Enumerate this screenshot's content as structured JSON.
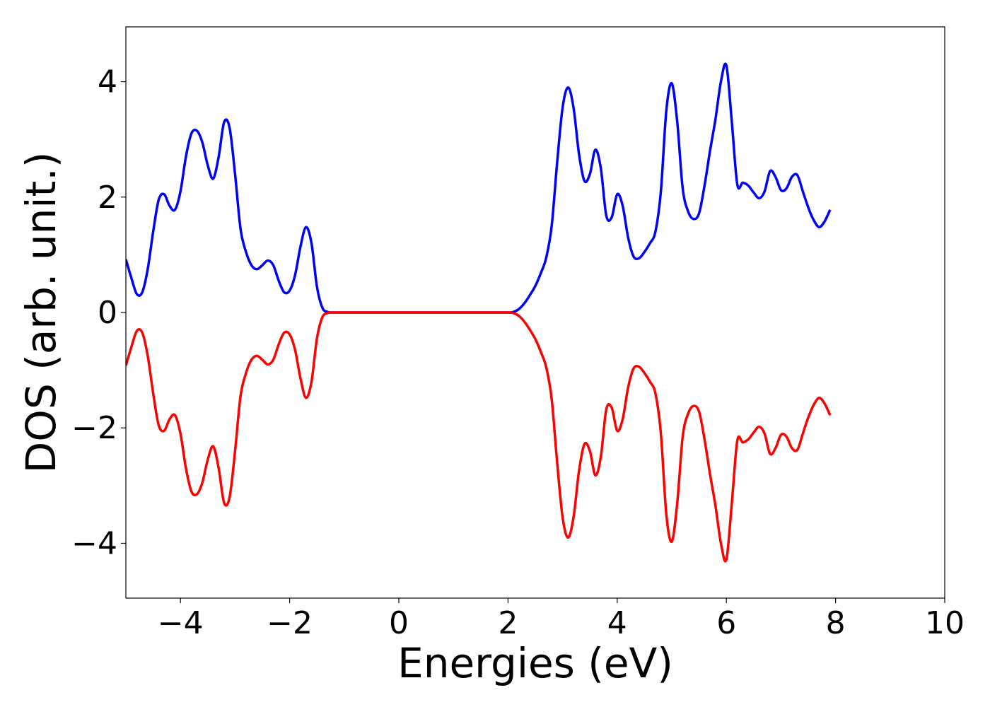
{
  "chart_data": {
    "type": "line",
    "title": "",
    "xlabel": "Energies (eV)",
    "ylabel": "DOS (arb. unit.)",
    "xlim": [
      -5,
      10
    ],
    "ylim": [
      -4.95,
      4.95
    ],
    "grid": false,
    "legend": "none",
    "x_ticks": [
      {
        "value": -4,
        "label": "−4"
      },
      {
        "value": -2,
        "label": "−2"
      },
      {
        "value": 0,
        "label": "0"
      },
      {
        "value": 2,
        "label": "2"
      },
      {
        "value": 4,
        "label": "4"
      },
      {
        "value": 6,
        "label": "6"
      },
      {
        "value": 8,
        "label": "8"
      },
      {
        "value": 10,
        "label": "10"
      }
    ],
    "y_ticks": [
      {
        "value": -4,
        "label": "−4"
      },
      {
        "value": -2,
        "label": "−2"
      },
      {
        "value": 0,
        "label": "0"
      },
      {
        "value": 2,
        "label": "2"
      },
      {
        "value": 4,
        "label": "4"
      }
    ],
    "series": [
      {
        "color": "#0000ff",
        "points": [
          [
            -5.0,
            0.92
          ],
          [
            -4.9,
            0.6
          ],
          [
            -4.8,
            0.32
          ],
          [
            -4.7,
            0.35
          ],
          [
            -4.6,
            0.75
          ],
          [
            -4.5,
            1.4
          ],
          [
            -4.4,
            1.95
          ],
          [
            -4.3,
            2.05
          ],
          [
            -4.2,
            1.85
          ],
          [
            -4.1,
            1.78
          ],
          [
            -4.0,
            2.1
          ],
          [
            -3.9,
            2.7
          ],
          [
            -3.8,
            3.1
          ],
          [
            -3.7,
            3.15
          ],
          [
            -3.6,
            2.95
          ],
          [
            -3.5,
            2.55
          ],
          [
            -3.4,
            2.32
          ],
          [
            -3.3,
            2.7
          ],
          [
            -3.2,
            3.3
          ],
          [
            -3.1,
            3.2
          ],
          [
            -3.0,
            2.4
          ],
          [
            -2.9,
            1.45
          ],
          [
            -2.8,
            1.05
          ],
          [
            -2.7,
            0.82
          ],
          [
            -2.6,
            0.75
          ],
          [
            -2.5,
            0.82
          ],
          [
            -2.4,
            0.9
          ],
          [
            -2.3,
            0.82
          ],
          [
            -2.2,
            0.55
          ],
          [
            -2.1,
            0.35
          ],
          [
            -2.0,
            0.38
          ],
          [
            -1.9,
            0.65
          ],
          [
            -1.8,
            1.15
          ],
          [
            -1.7,
            1.48
          ],
          [
            -1.6,
            1.2
          ],
          [
            -1.5,
            0.45
          ],
          [
            -1.4,
            0.08
          ],
          [
            -1.3,
            0.01
          ],
          [
            -1.2,
            0.0
          ],
          [
            -0.5,
            0.0
          ],
          [
            0.0,
            0.0
          ],
          [
            0.5,
            0.0
          ],
          [
            1.0,
            0.0
          ],
          [
            1.5,
            0.0
          ],
          [
            2.0,
            0.0
          ],
          [
            2.1,
            0.01
          ],
          [
            2.2,
            0.06
          ],
          [
            2.3,
            0.16
          ],
          [
            2.4,
            0.3
          ],
          [
            2.5,
            0.46
          ],
          [
            2.6,
            0.68
          ],
          [
            2.7,
            0.95
          ],
          [
            2.8,
            1.5
          ],
          [
            2.9,
            2.6
          ],
          [
            3.0,
            3.55
          ],
          [
            3.1,
            3.9
          ],
          [
            3.2,
            3.55
          ],
          [
            3.3,
            2.75
          ],
          [
            3.4,
            2.28
          ],
          [
            3.5,
            2.4
          ],
          [
            3.6,
            2.82
          ],
          [
            3.7,
            2.5
          ],
          [
            3.8,
            1.68
          ],
          [
            3.9,
            1.65
          ],
          [
            4.0,
            2.05
          ],
          [
            4.1,
            1.85
          ],
          [
            4.2,
            1.3
          ],
          [
            4.3,
            0.97
          ],
          [
            4.4,
            0.94
          ],
          [
            4.5,
            1.05
          ],
          [
            4.6,
            1.2
          ],
          [
            4.7,
            1.4
          ],
          [
            4.8,
            2.1
          ],
          [
            4.9,
            3.5
          ],
          [
            5.0,
            3.97
          ],
          [
            5.1,
            3.3
          ],
          [
            5.2,
            2.15
          ],
          [
            5.3,
            1.75
          ],
          [
            5.4,
            1.62
          ],
          [
            5.5,
            1.72
          ],
          [
            5.6,
            2.2
          ],
          [
            5.7,
            2.8
          ],
          [
            5.8,
            3.35
          ],
          [
            5.9,
            4.0
          ],
          [
            6.0,
            4.28
          ],
          [
            6.1,
            3.3
          ],
          [
            6.2,
            2.22
          ],
          [
            6.3,
            2.25
          ],
          [
            6.4,
            2.2
          ],
          [
            6.5,
            2.08
          ],
          [
            6.6,
            1.98
          ],
          [
            6.7,
            2.1
          ],
          [
            6.8,
            2.45
          ],
          [
            6.9,
            2.35
          ],
          [
            7.0,
            2.12
          ],
          [
            7.1,
            2.15
          ],
          [
            7.2,
            2.35
          ],
          [
            7.3,
            2.38
          ],
          [
            7.4,
            2.1
          ],
          [
            7.5,
            1.82
          ],
          [
            7.6,
            1.6
          ],
          [
            7.7,
            1.48
          ],
          [
            7.8,
            1.58
          ],
          [
            7.9,
            1.78
          ]
        ]
      },
      {
        "color": "#ff0000",
        "points": [
          [
            -5.0,
            -0.92
          ],
          [
            -4.9,
            -0.6
          ],
          [
            -4.8,
            -0.32
          ],
          [
            -4.7,
            -0.35
          ],
          [
            -4.6,
            -0.75
          ],
          [
            -4.5,
            -1.4
          ],
          [
            -4.4,
            -1.95
          ],
          [
            -4.3,
            -2.05
          ],
          [
            -4.2,
            -1.85
          ],
          [
            -4.1,
            -1.78
          ],
          [
            -4.0,
            -2.1
          ],
          [
            -3.9,
            -2.7
          ],
          [
            -3.8,
            -3.1
          ],
          [
            -3.7,
            -3.15
          ],
          [
            -3.6,
            -2.95
          ],
          [
            -3.5,
            -2.55
          ],
          [
            -3.4,
            -2.32
          ],
          [
            -3.3,
            -2.7
          ],
          [
            -3.2,
            -3.3
          ],
          [
            -3.1,
            -3.2
          ],
          [
            -3.0,
            -2.4
          ],
          [
            -2.9,
            -1.45
          ],
          [
            -2.8,
            -1.05
          ],
          [
            -2.7,
            -0.82
          ],
          [
            -2.6,
            -0.75
          ],
          [
            -2.5,
            -0.82
          ],
          [
            -2.4,
            -0.9
          ],
          [
            -2.3,
            -0.82
          ],
          [
            -2.2,
            -0.55
          ],
          [
            -2.1,
            -0.35
          ],
          [
            -2.0,
            -0.38
          ],
          [
            -1.9,
            -0.65
          ],
          [
            -1.8,
            -1.15
          ],
          [
            -1.7,
            -1.48
          ],
          [
            -1.6,
            -1.2
          ],
          [
            -1.5,
            -0.45
          ],
          [
            -1.4,
            -0.08
          ],
          [
            -1.3,
            -0.01
          ],
          [
            -1.2,
            0.0
          ],
          [
            -0.5,
            0.0
          ],
          [
            0.0,
            0.0
          ],
          [
            0.5,
            0.0
          ],
          [
            1.0,
            0.0
          ],
          [
            1.5,
            0.0
          ],
          [
            2.0,
            0.0
          ],
          [
            2.1,
            -0.01
          ],
          [
            2.2,
            -0.06
          ],
          [
            2.3,
            -0.16
          ],
          [
            2.4,
            -0.3
          ],
          [
            2.5,
            -0.46
          ],
          [
            2.6,
            -0.68
          ],
          [
            2.7,
            -0.95
          ],
          [
            2.8,
            -1.5
          ],
          [
            2.9,
            -2.6
          ],
          [
            3.0,
            -3.55
          ],
          [
            3.1,
            -3.9
          ],
          [
            3.2,
            -3.55
          ],
          [
            3.3,
            -2.75
          ],
          [
            3.4,
            -2.28
          ],
          [
            3.5,
            -2.4
          ],
          [
            3.6,
            -2.82
          ],
          [
            3.7,
            -2.5
          ],
          [
            3.8,
            -1.68
          ],
          [
            3.9,
            -1.65
          ],
          [
            4.0,
            -2.05
          ],
          [
            4.1,
            -1.85
          ],
          [
            4.2,
            -1.3
          ],
          [
            4.3,
            -0.97
          ],
          [
            4.4,
            -0.94
          ],
          [
            4.5,
            -1.05
          ],
          [
            4.6,
            -1.2
          ],
          [
            4.7,
            -1.4
          ],
          [
            4.8,
            -2.1
          ],
          [
            4.9,
            -3.5
          ],
          [
            5.0,
            -3.97
          ],
          [
            5.1,
            -3.3
          ],
          [
            5.2,
            -2.15
          ],
          [
            5.3,
            -1.75
          ],
          [
            5.4,
            -1.62
          ],
          [
            5.5,
            -1.72
          ],
          [
            5.6,
            -2.2
          ],
          [
            5.7,
            -2.8
          ],
          [
            5.8,
            -3.35
          ],
          [
            5.9,
            -4.0
          ],
          [
            6.0,
            -4.28
          ],
          [
            6.1,
            -3.3
          ],
          [
            6.2,
            -2.22
          ],
          [
            6.3,
            -2.25
          ],
          [
            6.4,
            -2.2
          ],
          [
            6.5,
            -2.08
          ],
          [
            6.6,
            -1.98
          ],
          [
            6.7,
            -2.1
          ],
          [
            6.8,
            -2.45
          ],
          [
            6.9,
            -2.35
          ],
          [
            7.0,
            -2.12
          ],
          [
            7.1,
            -2.15
          ],
          [
            7.2,
            -2.35
          ],
          [
            7.3,
            -2.38
          ],
          [
            7.4,
            -2.1
          ],
          [
            7.5,
            -1.82
          ],
          [
            7.6,
            -1.6
          ],
          [
            7.7,
            -1.48
          ],
          [
            7.8,
            -1.58
          ],
          [
            7.9,
            -1.78
          ]
        ]
      }
    ]
  }
}
